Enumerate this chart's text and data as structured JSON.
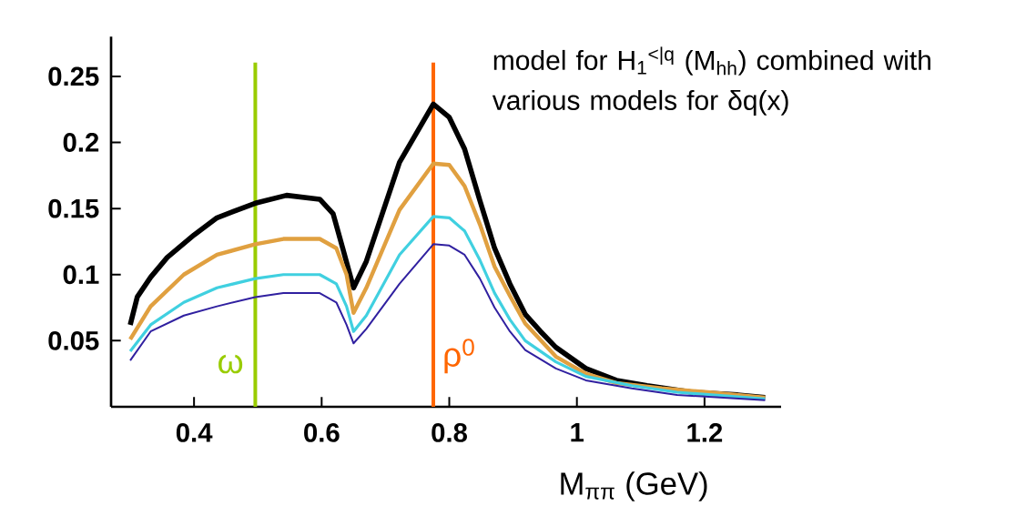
{
  "chart_data": {
    "type": "line",
    "xlabel": "M$_{ππ}$ (GeV)",
    "annotations": [
      "model for H$_{1}$$^{<|q}$ (M$_{hh}$) combined with various models for δq(x)"
    ],
    "xlim": [
      0.27,
      1.32
    ],
    "ylim": [
      0,
      0.28
    ],
    "xticks": [
      0.4,
      0.6,
      0.8,
      1,
      1.2
    ],
    "yticks": [
      0.05,
      0.1,
      0.15,
      0.2,
      0.25
    ],
    "grid": false,
    "marker": "none",
    "line_style": "solid",
    "ref_lines": [
      {
        "axis": "x",
        "value": 0.496,
        "label": "ω",
        "color": "#99cc00"
      },
      {
        "axis": "x",
        "value": 0.775,
        "label": "ρ$^{0}$",
        "color": "#ff6600"
      }
    ],
    "series": [
      {
        "color": "#000000",
        "x": [
          0.3,
          0.311,
          0.332,
          0.358,
          0.4,
          0.436,
          0.496,
          0.545,
          0.597,
          0.618,
          0.633,
          0.65,
          0.67,
          0.722,
          0.775,
          0.8,
          0.824,
          0.848,
          0.871,
          0.895,
          0.919,
          0.943,
          0.967,
          1.014,
          1.062,
          1.11,
          1.181,
          1.252,
          1.295
        ],
        "values": [
          0.062,
          0.083,
          0.098,
          0.113,
          0.13,
          0.143,
          0.154,
          0.16,
          0.157,
          0.146,
          0.12,
          0.09,
          0.11,
          0.185,
          0.229,
          0.219,
          0.195,
          0.156,
          0.12,
          0.093,
          0.07,
          0.057,
          0.045,
          0.029,
          0.02,
          0.016,
          0.011,
          0.009,
          0.007
        ]
      },
      {
        "color": "#e0a040",
        "x": [
          0.3,
          0.332,
          0.384,
          0.436,
          0.496,
          0.54,
          0.597,
          0.623,
          0.639,
          0.65,
          0.67,
          0.722,
          0.775,
          0.8,
          0.824,
          0.848,
          0.871,
          0.895,
          0.919,
          0.967,
          1.014,
          1.062,
          1.133,
          1.205,
          1.295
        ],
        "values": [
          0.051,
          0.076,
          0.1,
          0.115,
          0.123,
          0.127,
          0.127,
          0.12,
          0.1,
          0.071,
          0.09,
          0.149,
          0.184,
          0.183,
          0.167,
          0.138,
          0.106,
          0.084,
          0.063,
          0.038,
          0.025,
          0.018,
          0.014,
          0.011,
          0.007
        ]
      },
      {
        "color": "#40d0e0",
        "x": [
          0.3,
          0.332,
          0.384,
          0.436,
          0.496,
          0.54,
          0.597,
          0.623,
          0.639,
          0.65,
          0.67,
          0.722,
          0.775,
          0.8,
          0.824,
          0.848,
          0.871,
          0.895,
          0.919,
          0.967,
          1.014,
          1.086,
          1.157,
          1.295
        ],
        "values": [
          0.042,
          0.062,
          0.079,
          0.09,
          0.097,
          0.1,
          0.1,
          0.093,
          0.076,
          0.057,
          0.069,
          0.115,
          0.144,
          0.143,
          0.133,
          0.111,
          0.086,
          0.066,
          0.05,
          0.034,
          0.023,
          0.016,
          0.011,
          0.006
        ]
      },
      {
        "color": "#3020a0",
        "x": [
          0.3,
          0.332,
          0.384,
          0.436,
          0.496,
          0.54,
          0.597,
          0.623,
          0.639,
          0.65,
          0.67,
          0.722,
          0.775,
          0.8,
          0.824,
          0.848,
          0.871,
          0.895,
          0.919,
          0.967,
          1.014,
          1.086,
          1.157,
          1.295
        ],
        "values": [
          0.035,
          0.057,
          0.069,
          0.076,
          0.083,
          0.086,
          0.086,
          0.079,
          0.062,
          0.048,
          0.059,
          0.093,
          0.123,
          0.122,
          0.115,
          0.097,
          0.075,
          0.057,
          0.043,
          0.029,
          0.02,
          0.014,
          0.009,
          0.005
        ]
      }
    ]
  }
}
